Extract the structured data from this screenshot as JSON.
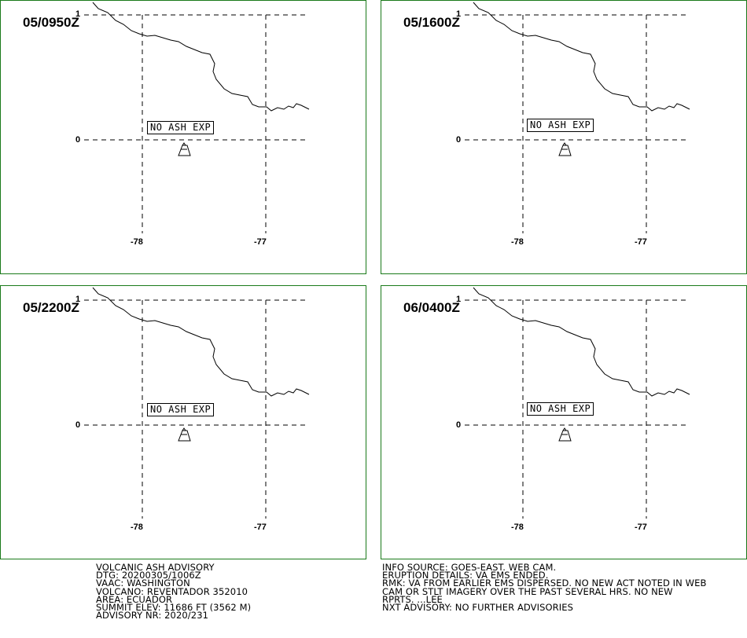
{
  "panels": [
    {
      "time": "05/0950Z",
      "label": "NO ASH EXP"
    },
    {
      "time": "05/1600Z",
      "label": "NO ASH EXP"
    },
    {
      "time": "05/2200Z",
      "label": "NO ASH EXP"
    },
    {
      "time": "06/0400Z",
      "label": "NO ASH EXP"
    }
  ],
  "axis": {
    "lat_top": "1",
    "lat_zero": "0",
    "lon_left": "-78",
    "lon_right": "-77"
  },
  "advisory_left": [
    "VOLCANIC ASH ADVISORY",
    "DTG: 20200305/1006Z",
    "VAAC: WASHINGTON",
    "VOLCANO: REVENTADOR 352010",
    "AREA: ECUADOR",
    "SUMMIT ELEV: 11686 FT (3562 M)",
    "ADVISORY NR: 2020/231"
  ],
  "advisory_right": [
    "INFO SOURCE: GOES-EAST. WEB CAM.",
    "ERUPTION DETAILS: VA EMS ENDED.",
    "RMK: VA FROM EARLIER EMS DISPERSED. NO NEW ACT NOTED IN WEB",
    "CAM OR STLT IMAGERY OVER THE PAST SEVERAL HRS. NO NEW",
    "RPRTS. ...LEE",
    "NXT ADVISORY: NO FURTHER ADVISORIES"
  ],
  "colors": {
    "frame": "#1a7a1a",
    "lines": "#000000"
  }
}
